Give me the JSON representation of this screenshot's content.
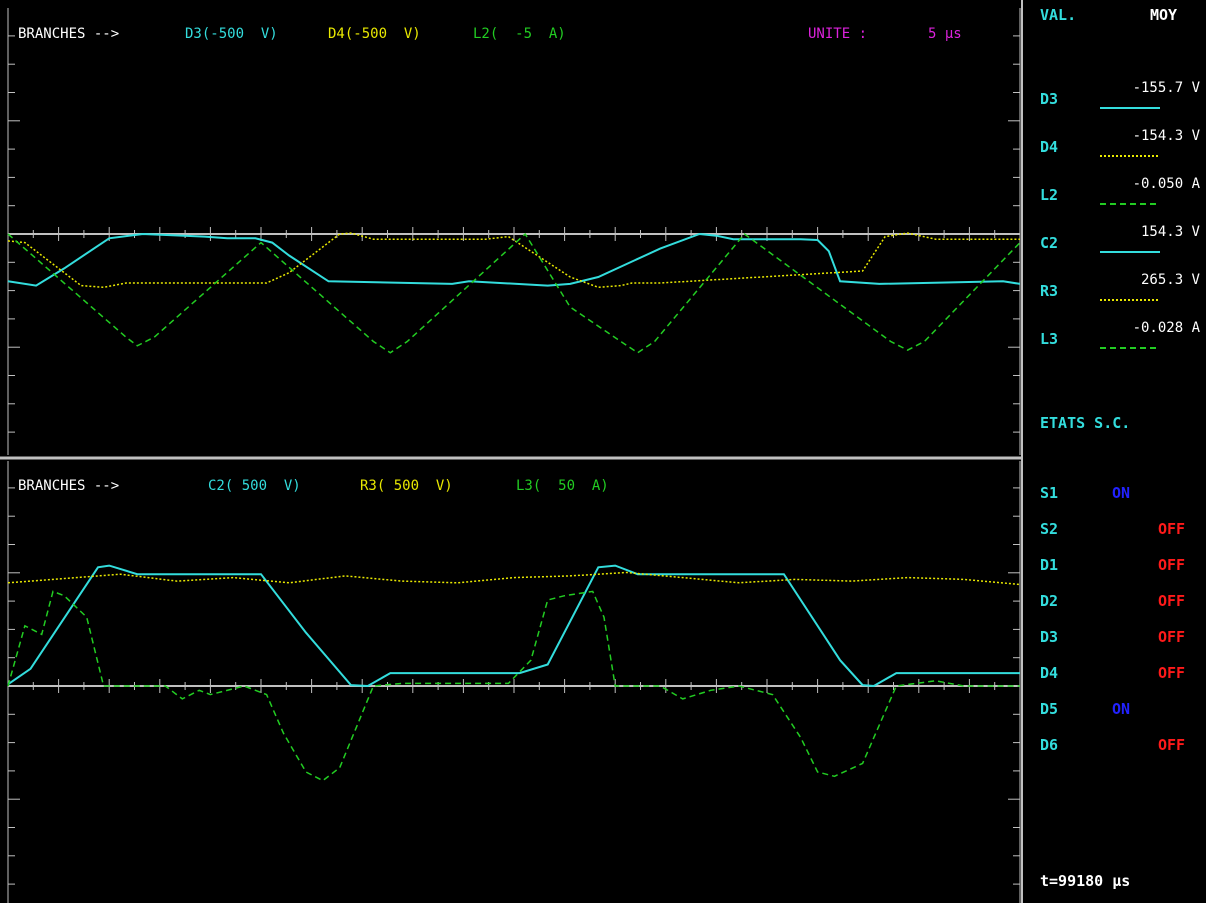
{
  "colors": {
    "background": "#000000",
    "frame": "#c0c0c0",
    "cyan": "#33dddd",
    "yellow": "#e8e800",
    "green": "#22cc22",
    "magenta": "#dd22dd",
    "blue": "#2222ff",
    "red": "#ff1a1a",
    "white": "#ffffff"
  },
  "top_panel": {
    "branches_label": "BRANCHES -->",
    "channels": [
      {
        "text": "D3(-500  V)",
        "color": "cyan"
      },
      {
        "text": "D4(-500  V)",
        "color": "yellow"
      },
      {
        "text": "L2(  -5  A)",
        "color": "green"
      }
    ],
    "unit_label": "UNITE :",
    "unit_value": "5 µs"
  },
  "bottom_panel": {
    "branches_label": "BRANCHES -->",
    "channels": [
      {
        "text": "C2( 500  V)",
        "color": "cyan"
      },
      {
        "text": "R3( 500  V)",
        "color": "yellow"
      },
      {
        "text": "L3(  50  A)",
        "color": "green"
      }
    ]
  },
  "side_panel": {
    "header_left": "VAL.",
    "header_right": "MOY",
    "measurements": [
      {
        "name": "D3",
        "value": "-155.7 V",
        "line": "solid",
        "color": "cyan"
      },
      {
        "name": "D4",
        "value": "-154.3 V",
        "line": "dotted",
        "color": "yellow"
      },
      {
        "name": "L2",
        "value": "-0.050 A",
        "line": "dashed",
        "color": "green"
      },
      {
        "name": "C2",
        "value": "154.3 V",
        "line": "solid",
        "color": "cyan"
      },
      {
        "name": "R3",
        "value": "265.3 V",
        "line": "dotted",
        "color": "yellow"
      },
      {
        "name": "L3",
        "value": "-0.028 A",
        "line": "dashed",
        "color": "green"
      }
    ],
    "states_title": "ETATS S.C.",
    "states": [
      {
        "name": "S1",
        "state": "ON"
      },
      {
        "name": "S2",
        "state": "OFF"
      },
      {
        "name": "D1",
        "state": "OFF"
      },
      {
        "name": "D2",
        "state": "OFF"
      },
      {
        "name": "D3",
        "state": "OFF"
      },
      {
        "name": "D4",
        "state": "OFF"
      },
      {
        "name": "D5",
        "state": "ON"
      },
      {
        "name": "D6",
        "state": "OFF"
      }
    ],
    "time_readout": "t=99180 µs"
  },
  "chart_data": [
    {
      "type": "line",
      "panel": "top",
      "x_unit": "µs",
      "series": [
        {
          "name": "D3",
          "color": "cyan",
          "style": "solid",
          "x": [
            0,
            0.5,
            1,
            1.8,
            2.4,
            3.5,
            3.9,
            4.4,
            4.7,
            5,
            5.7,
            7.9,
            8.2,
            9.6,
            10,
            10.5,
            11.6,
            12.3,
            12.6,
            12.9,
            13.3,
            13.7,
            14.1,
            14.4,
            14.6,
            14.8,
            15.5,
            17.7,
            18
          ],
          "y": [
            -0.55,
            -0.6,
            -0.4,
            -0.05,
            0,
            -0.03,
            -0.05,
            -0.05,
            -0.1,
            -0.25,
            -0.55,
            -0.58,
            -0.55,
            -0.6,
            -0.58,
            -0.5,
            -0.17,
            0,
            -0.02,
            -0.06,
            -0.06,
            -0.06,
            -0.06,
            -0.07,
            -0.2,
            -0.55,
            -0.58,
            -0.55,
            -0.58
          ]
        },
        {
          "name": "D4",
          "color": "yellow",
          "style": "dotted",
          "x": [
            0,
            0.3,
            0.9,
            1.3,
            1.7,
            2.1,
            2.3,
            4.6,
            5,
            5.9,
            6.1,
            6.5,
            7,
            8.5,
            8.9,
            10,
            10.5,
            10.9,
            11.1,
            11.6,
            15.2,
            15.6,
            16,
            16.5,
            18
          ],
          "y": [
            -0.08,
            -0.1,
            -0.4,
            -0.6,
            -0.62,
            -0.57,
            -0.57,
            -0.57,
            -0.45,
            0,
            0.01,
            -0.06,
            -0.06,
            -0.06,
            -0.03,
            -0.5,
            -0.62,
            -0.6,
            -0.57,
            -0.57,
            -0.43,
            -0.03,
            0.01,
            -0.06,
            -0.06
          ]
        },
        {
          "name": "L2",
          "color": "green",
          "style": "dashed",
          "x": [
            0,
            2.1,
            2.3,
            2.6,
            4.5,
            6.5,
            6.8,
            7.1,
            9.2,
            10,
            10.9,
            11.2,
            11.5,
            13.1,
            15.7,
            16,
            16.3,
            18
          ],
          "y": [
            0,
            -1.2,
            -1.3,
            -1.2,
            -0.1,
            -1.25,
            -1.38,
            -1.25,
            0,
            -0.85,
            -1.25,
            -1.38,
            -1.25,
            0,
            -1.25,
            -1.35,
            -1.25,
            -0.1
          ]
        }
      ]
    },
    {
      "type": "line",
      "panel": "bottom",
      "x_unit": "µs",
      "series": [
        {
          "name": "C2",
          "color": "cyan",
          "style": "solid",
          "x": [
            0,
            0.4,
            1.6,
            1.8,
            2.3,
            4.5,
            5.3,
            6.1,
            6.4,
            6.8,
            7.6,
            9.1,
            9.6,
            10.5,
            10.8,
            11.2,
            11.7,
            13.8,
            14.8,
            15.2,
            15.4,
            15.8,
            16.3,
            18
          ],
          "y": [
            0.02,
            0.2,
            1.38,
            1.4,
            1.3,
            1.3,
            0.62,
            0.01,
            0,
            0.15,
            0.15,
            0.15,
            0.25,
            1.38,
            1.4,
            1.3,
            1.3,
            1.3,
            0.3,
            0.01,
            0,
            0.15,
            0.15,
            0.15
          ]
        },
        {
          "name": "R3",
          "color": "yellow",
          "style": "dotted",
          "x": [
            0,
            0.8,
            2,
            3,
            4,
            5,
            6,
            7,
            8,
            9,
            10,
            11,
            12,
            13,
            14,
            15,
            16,
            17,
            18
          ],
          "y": [
            1.2,
            1.24,
            1.3,
            1.22,
            1.26,
            1.2,
            1.28,
            1.22,
            1.2,
            1.26,
            1.28,
            1.32,
            1.26,
            1.2,
            1.24,
            1.22,
            1.26,
            1.24,
            1.18
          ]
        },
        {
          "name": "L3",
          "color": "green",
          "style": "dashed",
          "x": [
            0,
            0.3,
            0.6,
            0.8,
            1,
            1.4,
            1.7,
            2,
            2.5,
            2.8,
            3.1,
            3.4,
            3.6,
            4.2,
            4.6,
            4.9,
            5.3,
            5.6,
            5.9,
            6.5,
            7,
            8.9,
            9.3,
            9.6,
            9.9,
            10.4,
            10.6,
            10.8,
            11.2,
            11.6,
            12,
            12.5,
            13,
            13.6,
            14.1,
            14.4,
            14.7,
            15.2,
            15.8,
            16.5,
            17,
            18
          ],
          "y": [
            0,
            0.7,
            0.6,
            1.1,
            1.05,
            0.8,
            0,
            0,
            0,
            0,
            -0.15,
            -0.05,
            -0.1,
            0,
            -0.1,
            -0.55,
            -1.0,
            -1.1,
            -0.95,
            0,
            0.03,
            0.03,
            0.3,
            1.0,
            1.05,
            1.1,
            0.8,
            0.0,
            0.0,
            0.0,
            -0.15,
            -0.05,
            0,
            -0.1,
            -0.6,
            -1.0,
            -1.05,
            -0.9,
            0,
            0.06,
            0,
            0
          ]
        }
      ]
    }
  ]
}
